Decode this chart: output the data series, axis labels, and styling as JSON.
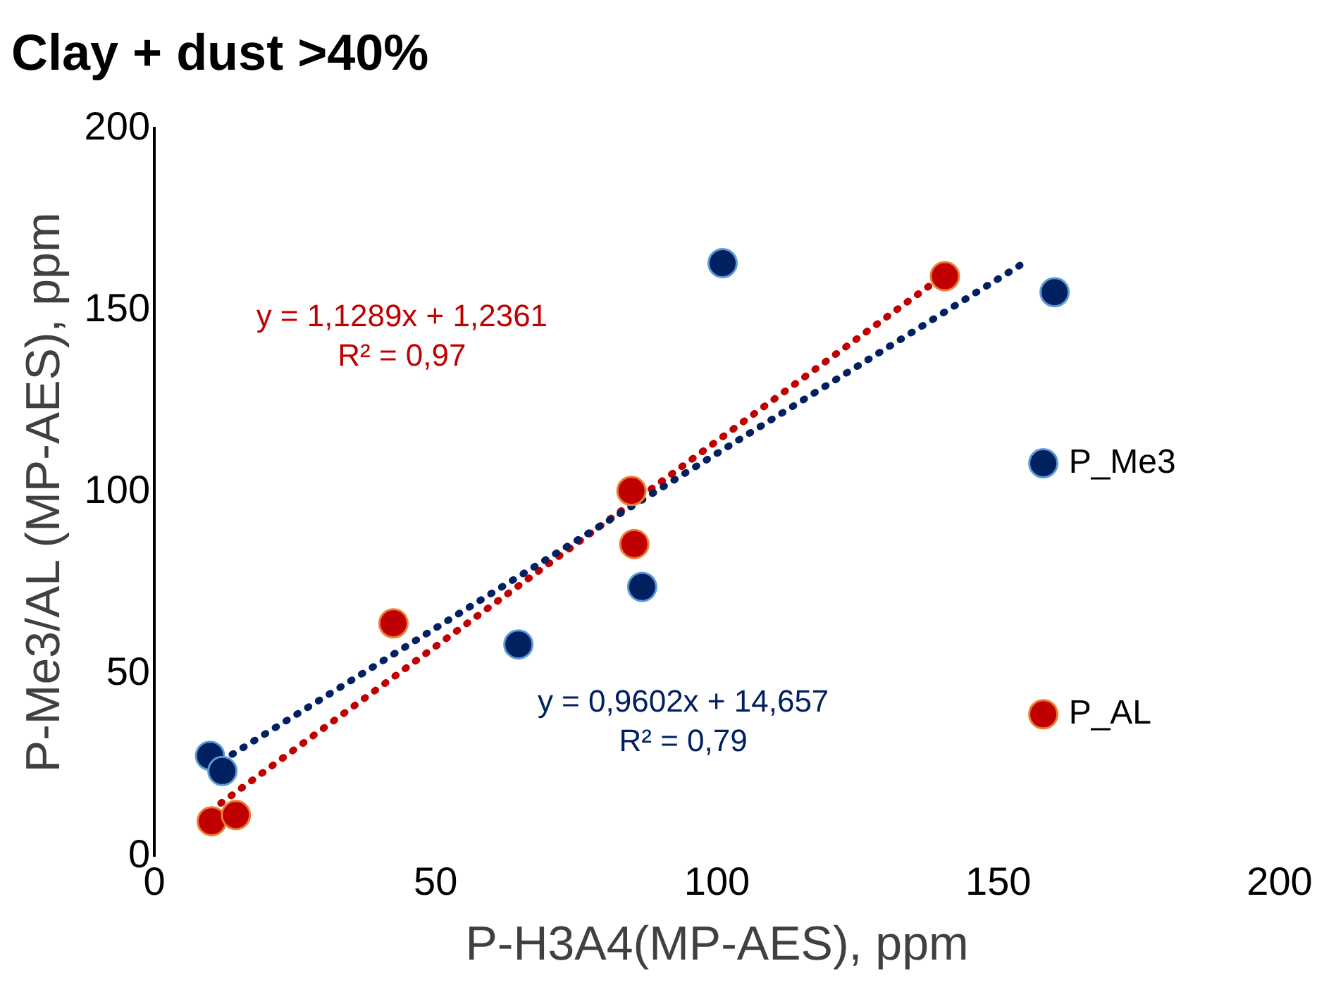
{
  "chart_data": {
    "type": "scatter",
    "title": "Clay + dust >40%",
    "xlabel": "P-H3A4(MP-AES), ppm",
    "ylabel": "P-Me3/AL (MP-AES), ppm",
    "xlim": [
      0,
      200
    ],
    "xticks": [
      0,
      50,
      100,
      150,
      200
    ],
    "ylim": [
      0,
      200
    ],
    "yticks": [
      0,
      50,
      100,
      150,
      200
    ],
    "grid": false,
    "legend": "right",
    "marker": "circle",
    "series": [
      {
        "name": "P_Me3",
        "color": "#002060",
        "x": [
          9.9,
          12.1,
          64.7,
          86.7,
          101,
          160
        ],
        "values": [
          27.6,
          23.4,
          58.2,
          74,
          163,
          155
        ]
      },
      {
        "name": "P_AL",
        "color": "#c00000",
        "x": [
          10.2,
          14.5,
          42.5,
          84.8,
          85.3,
          140.5
        ],
        "values": [
          9.6,
          11.3,
          64,
          100.4,
          85.8,
          159.4
        ]
      },
      {
        "type": "line",
        "color": "#002060",
        "line_style": "dotted",
        "marker": "none",
        "x": [
          10,
          155
        ],
        "values": [
          24.3,
          163.5
        ]
      },
      {
        "type": "line",
        "color": "#c00000",
        "line_style": "dotted",
        "marker": "none",
        "x": [
          10,
          140
        ],
        "values": [
          12.5,
          159.3
        ]
      }
    ],
    "annotations": [
      "y = 0,9602x + 14,657\nR² = 0,79",
      "y = 1,1289x + 1,2361\nR² = 0,97"
    ]
  }
}
